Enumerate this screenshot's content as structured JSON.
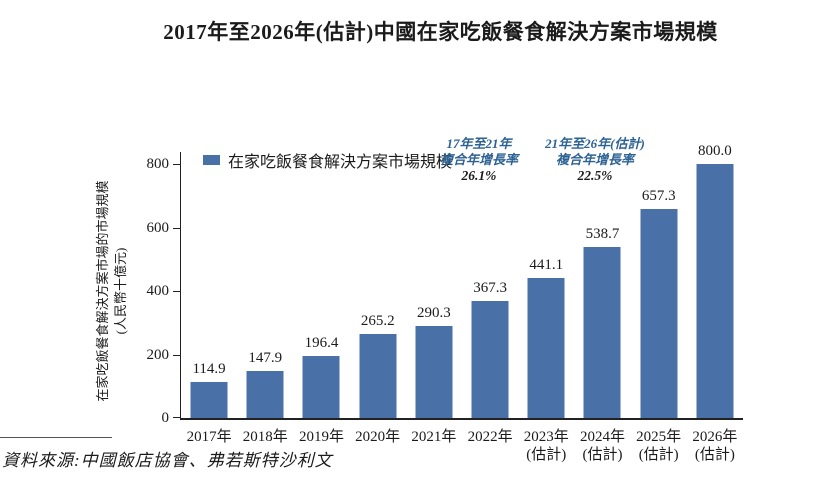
{
  "page": {
    "title": "2017年至2026年(估計)中國在家吃飯餐食解決方案市場規模",
    "source_note": "資料來源:中國飯店協會、弗若斯特沙利文"
  },
  "colors": {
    "bar": "#4a71a7",
    "annotation_blue": "#2d6294",
    "axis": "#222222"
  },
  "chart_data": {
    "type": "bar",
    "title": "2017年至2026年(估計)中國在家吃飯餐食解決方案市場規模",
    "categories": [
      "2017年",
      "2018年",
      "2019年",
      "2020年",
      "2021年",
      "2022年",
      "2023年(估計)",
      "2024年(估計)",
      "2025年(估計)",
      "2026年(估計)"
    ],
    "values": [
      114.9,
      147.9,
      196.4,
      265.2,
      290.3,
      367.3,
      441.1,
      538.7,
      657.3,
      800.0
    ],
    "value_decimals": 1,
    "ylim": [
      0,
      800
    ],
    "yticks": [
      0,
      200,
      400,
      600,
      800
    ],
    "ylabel_line1": "在家吃飯餐食解決方案市場的市場規模",
    "ylabel_line2": "(人民幣十億元)",
    "legend": "在家吃飯餐食解決方案市場規模",
    "legend_position": "top-left",
    "grid": false,
    "annotations": [
      {
        "line1": "17年至21年",
        "line2": "複合年增長率",
        "value": "26.1%"
      },
      {
        "line1": "21年至26年(估計)",
        "line2": "複合年增長率",
        "value": "22.5%"
      }
    ]
  }
}
